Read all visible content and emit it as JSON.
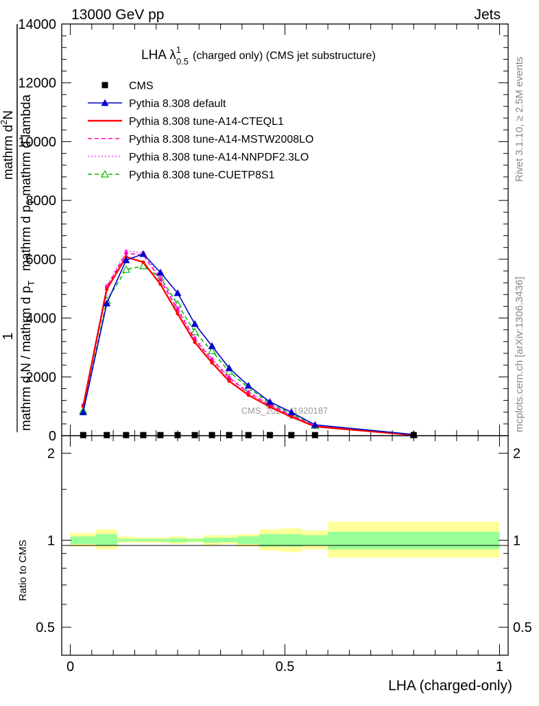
{
  "header": {
    "left": "13000 GeV pp",
    "right": "Jets"
  },
  "side": {
    "rivet": "Rivet 3.1.10, ≥ 2.5M events",
    "mcplots": "mcplots.cern.ch [arXiv:1306.3436]"
  },
  "watermark": "CMS_2021_I1920187",
  "chart_data": [
    {
      "type": "line",
      "title": "LHA λ",
      "title_sup": "1",
      "title_sub": "0.5",
      "title_suffix": "(charged only) (CMS jet substructure)",
      "xlabel": "LHA (charged-only)",
      "ylabel": {
        "numerator_frac": "1",
        "denominator_frac": "mathrm d N / mathrm d p",
        "sub_T": "T",
        "numerator": "mathrm d",
        "sup_2": "2",
        "N": "N",
        "denominator": "mathrm d p",
        "denominator_rest": " mathrm d lambda"
      },
      "xlim": [
        -0.02,
        1.02
      ],
      "ylim": [
        0,
        14000
      ],
      "y_ticks": [
        0,
        2000,
        4000,
        6000,
        8000,
        10000,
        12000,
        14000
      ],
      "y_tick_labels": [
        "0",
        "2000",
        "4000",
        "6000",
        "8000",
        "10000",
        "12000",
        "14000"
      ],
      "legend_placement": "top-left",
      "x": [
        0.03,
        0.085,
        0.13,
        0.17,
        0.21,
        0.25,
        0.29,
        0.33,
        0.37,
        0.415,
        0.465,
        0.515,
        0.57,
        0.8
      ],
      "series": [
        {
          "name": "CMS",
          "color": "#000000",
          "marker": "square",
          "line": "none",
          "values": [
            20,
            20,
            20,
            20,
            20,
            20,
            20,
            20,
            20,
            20,
            20,
            20,
            20,
            20
          ]
        },
        {
          "name": "Pythia 8.308 default",
          "color": "#0000cc",
          "marker": "triangle",
          "line": "solid",
          "values": [
            800,
            4500,
            5970,
            6180,
            5550,
            4850,
            3800,
            3050,
            2300,
            1700,
            1150,
            800,
            370,
            40
          ]
        },
        {
          "name": "Pythia 8.308 tune-A14-CTEQL1",
          "color": "#ff0000",
          "marker": "none",
          "line": "solid",
          "values": [
            1000,
            4980,
            6080,
            5900,
            5150,
            4150,
            3180,
            2480,
            1860,
            1380,
            980,
            640,
            310,
            20
          ]
        },
        {
          "name": "Pythia 8.308 tune-A14-MSTW2008LO",
          "color": "#ff00aa",
          "marker": "none",
          "line": "dashed",
          "values": [
            1020,
            5050,
            6200,
            6150,
            5300,
            4280,
            3280,
            2580,
            1960,
            1460,
            1040,
            690,
            330,
            25
          ]
        },
        {
          "name": "Pythia 8.308 tune-A14-NNPDF2.3LO",
          "color": "#ff44ff",
          "marker": "none",
          "line": "dotted",
          "values": [
            1050,
            5100,
            6280,
            6220,
            5380,
            4350,
            3330,
            2620,
            2000,
            1500,
            1070,
            710,
            340,
            25
          ]
        },
        {
          "name": "Pythia 8.308 tune-CUETP8S1",
          "color": "#00bb00",
          "marker": "open-triangle",
          "line": "dashed",
          "values": [
            850,
            4600,
            5650,
            5770,
            5380,
            4470,
            3530,
            2880,
            2180,
            1630,
            1100,
            750,
            340,
            30
          ]
        }
      ]
    },
    {
      "type": "area",
      "ylabel": "Ratio to CMS",
      "xlabel": "LHA (charged-only)",
      "y_scale": "log",
      "ylim": [
        0.4,
        2.3
      ],
      "y_ticks": [
        0.5,
        1,
        2
      ],
      "y_tick_labels": [
        "0.5",
        "1",
        "2"
      ],
      "x_ticks": [
        0,
        0.5,
        1
      ],
      "x_tick_labels": [
        "0",
        "0.5",
        "1"
      ],
      "bin_edges": [
        0,
        0.06,
        0.11,
        0.15,
        0.19,
        0.23,
        0.27,
        0.31,
        0.35,
        0.39,
        0.44,
        0.49,
        0.54,
        0.6,
        1.0
      ],
      "band_outer": [
        [
          0.95,
          1.06
        ],
        [
          0.93,
          1.09
        ],
        [
          0.98,
          1.03
        ],
        [
          0.98,
          1.02
        ],
        [
          0.98,
          1.02
        ],
        [
          0.97,
          1.03
        ],
        [
          0.98,
          1.02
        ],
        [
          0.96,
          1.04
        ],
        [
          0.97,
          1.04
        ],
        [
          0.95,
          1.05
        ],
        [
          0.92,
          1.09
        ],
        [
          0.91,
          1.1
        ],
        [
          0.93,
          1.08
        ],
        [
          0.87,
          1.16
        ]
      ],
      "band_inner": [
        [
          0.97,
          1.03
        ],
        [
          0.96,
          1.05
        ],
        [
          0.99,
          1.01
        ],
        [
          0.99,
          1.01
        ],
        [
          0.99,
          1.01
        ],
        [
          0.985,
          1.015
        ],
        [
          0.99,
          1.01
        ],
        [
          0.98,
          1.02
        ],
        [
          0.985,
          1.02
        ],
        [
          0.97,
          1.03
        ],
        [
          0.95,
          1.05
        ],
        [
          0.95,
          1.05
        ],
        [
          0.96,
          1.04
        ],
        [
          0.93,
          1.07
        ]
      ],
      "outer_color": "#ffff99",
      "inner_color": "#99ff99",
      "reference_line": 1
    }
  ]
}
